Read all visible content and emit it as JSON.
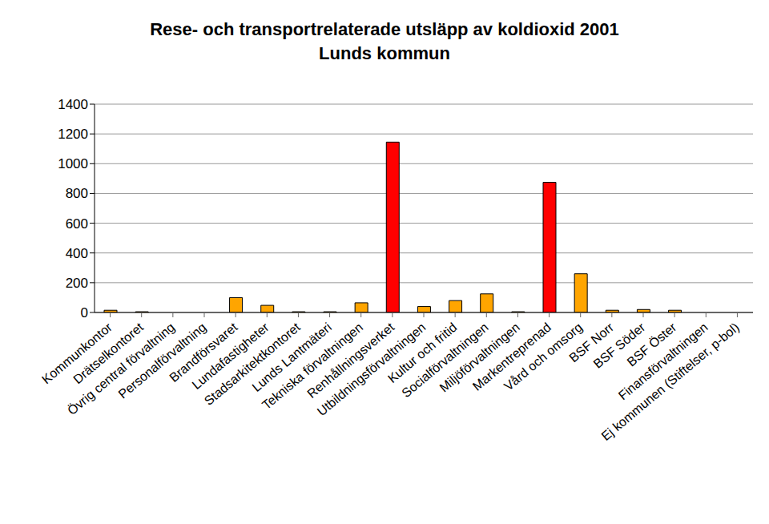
{
  "chart_data": {
    "type": "bar",
    "title": "Rese- och transportrelaterade utsläpp av koldioxid 2001",
    "subtitle": "Lunds kommun",
    "categories": [
      "Kommunkontor",
      "Drätselkontoret",
      "Övrig central förvaltning",
      "Personalförvaltning",
      "Brandförsvaret",
      "Lundafastigheter",
      "Stadsarkitektkontoret",
      "Lunds Lantmäteri",
      "Tekniska förvaltningen",
      "Renhållningsverket",
      "Utbildningsförvaltningen",
      "Kultur och fritid",
      "Socialförvaltningen",
      "Miljöförvaltningen",
      "Markentreprenad",
      "Vård och omsorg",
      "BSF Norr",
      "BSF Söder",
      "BSF Öster",
      "Finansförvaltningen",
      "Ej kommunen (Stiftelser, p-bol)"
    ],
    "values": [
      15,
      5,
      0,
      0,
      100,
      48,
      5,
      5,
      65,
      1145,
      40,
      80,
      125,
      5,
      875,
      260,
      15,
      20,
      15,
      0,
      0
    ],
    "colors": [
      "#ffa500",
      "#ffa500",
      "#ffa500",
      "#ffa500",
      "#ffa500",
      "#ffa500",
      "#ffa500",
      "#ffa500",
      "#ffa500",
      "#ff0000",
      "#ffa500",
      "#ffa500",
      "#ffa500",
      "#ffa500",
      "#ff0000",
      "#ffa500",
      "#ffa500",
      "#ffa500",
      "#ffa500",
      "#ffa500",
      "#ffa500"
    ],
    "ylim": [
      0,
      1400
    ],
    "yticks": [
      0,
      200,
      400,
      600,
      800,
      1000,
      1200,
      1400
    ],
    "grid": true
  }
}
